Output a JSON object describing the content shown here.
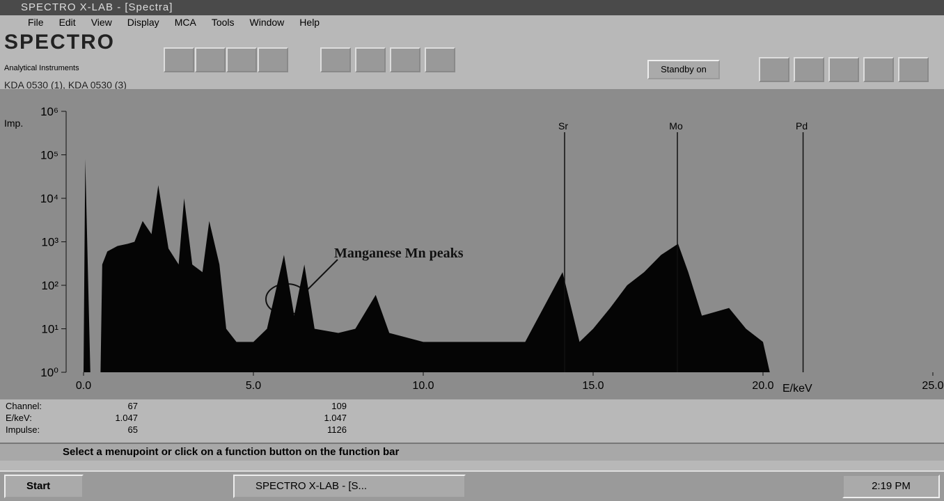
{
  "window_title": "SPECTRO X-LAB - [Spectra]",
  "menu": [
    "File",
    "Edit",
    "View",
    "Display",
    "MCA",
    "Tools",
    "Window",
    "Help"
  ],
  "logo": {
    "name": "SPECTRO",
    "subtitle": "Analytical Instruments"
  },
  "standby_button": "Standby on",
  "sample_label": "KDA 0530 (1), KDA 0530 (3)",
  "chart_data": {
    "type": "area",
    "log_y": true,
    "color": "#050505",
    "y_label": "Imp.",
    "x_label": "E/keV",
    "annotation": "Manganese Mn peaks",
    "element_lines": [
      {
        "label": "Sr",
        "energy": 14.16
      },
      {
        "label": "Mo",
        "energy": 17.48
      },
      {
        "label": "Pd",
        "energy": 21.18
      }
    ],
    "x": [
      0.0,
      0.05,
      0.2,
      0.5,
      0.55,
      0.7,
      1.0,
      1.3,
      1.5,
      1.74,
      2.0,
      2.2,
      2.5,
      2.8,
      2.96,
      3.2,
      3.5,
      3.7,
      4.0,
      4.2,
      4.5,
      5.0,
      5.4,
      5.9,
      6.2,
      6.5,
      6.8,
      7.5,
      8.0,
      8.6,
      9.0,
      10.0,
      11.0,
      12.0,
      13.0,
      14.1,
      14.6,
      15.0,
      15.5,
      16.0,
      16.5,
      17.0,
      17.5,
      17.8,
      18.2,
      19.0,
      19.5,
      20.0,
      20.2,
      25.0
    ],
    "values": [
      1,
      80000,
      1,
      1,
      300,
      600,
      800,
      900,
      1000,
      3000,
      1500,
      20000,
      700,
      300,
      10000,
      300,
      200,
      3000,
      300,
      10,
      5,
      5,
      10,
      500,
      20,
      300,
      10,
      8,
      10,
      60,
      8,
      5,
      5,
      5,
      5,
      200,
      5,
      10,
      30,
      100,
      200,
      500,
      900,
      200,
      20,
      30,
      10,
      5,
      1,
      1
    ],
    "xlim": [
      0,
      25
    ],
    "ylim": [
      1,
      1000000
    ],
    "xticks": [
      {
        "value": 0,
        "label": "0.0"
      },
      {
        "value": 5,
        "label": "5.0"
      },
      {
        "value": 10,
        "label": "10.0"
      },
      {
        "value": 15,
        "label": "15.0"
      },
      {
        "value": 20,
        "label": "20.0"
      },
      {
        "value": 25,
        "label": "25.0"
      }
    ],
    "yticks": [
      {
        "value": 1,
        "label": "10⁰"
      },
      {
        "value": 10,
        "label": "10¹"
      },
      {
        "value": 100,
        "label": "10²"
      },
      {
        "value": 1000,
        "label": "10³"
      },
      {
        "value": 10000,
        "label": "10⁴"
      },
      {
        "value": 100000,
        "label": "10⁵"
      },
      {
        "value": 1000000,
        "label": "10⁶"
      }
    ]
  },
  "readout": [
    {
      "label": "Channel:",
      "values": [
        67,
        109
      ]
    },
    {
      "label": "E/keV:",
      "values": [
        1.047,
        1.047
      ]
    },
    {
      "label": "Impulse:",
      "values": [
        65,
        1126
      ]
    }
  ],
  "status_text": "Select a menupoint or click on a function button on the function bar",
  "taskbar": {
    "start": "Start",
    "task": "SPECTRO X-LAB - [S...",
    "clock": "2:19 PM"
  }
}
